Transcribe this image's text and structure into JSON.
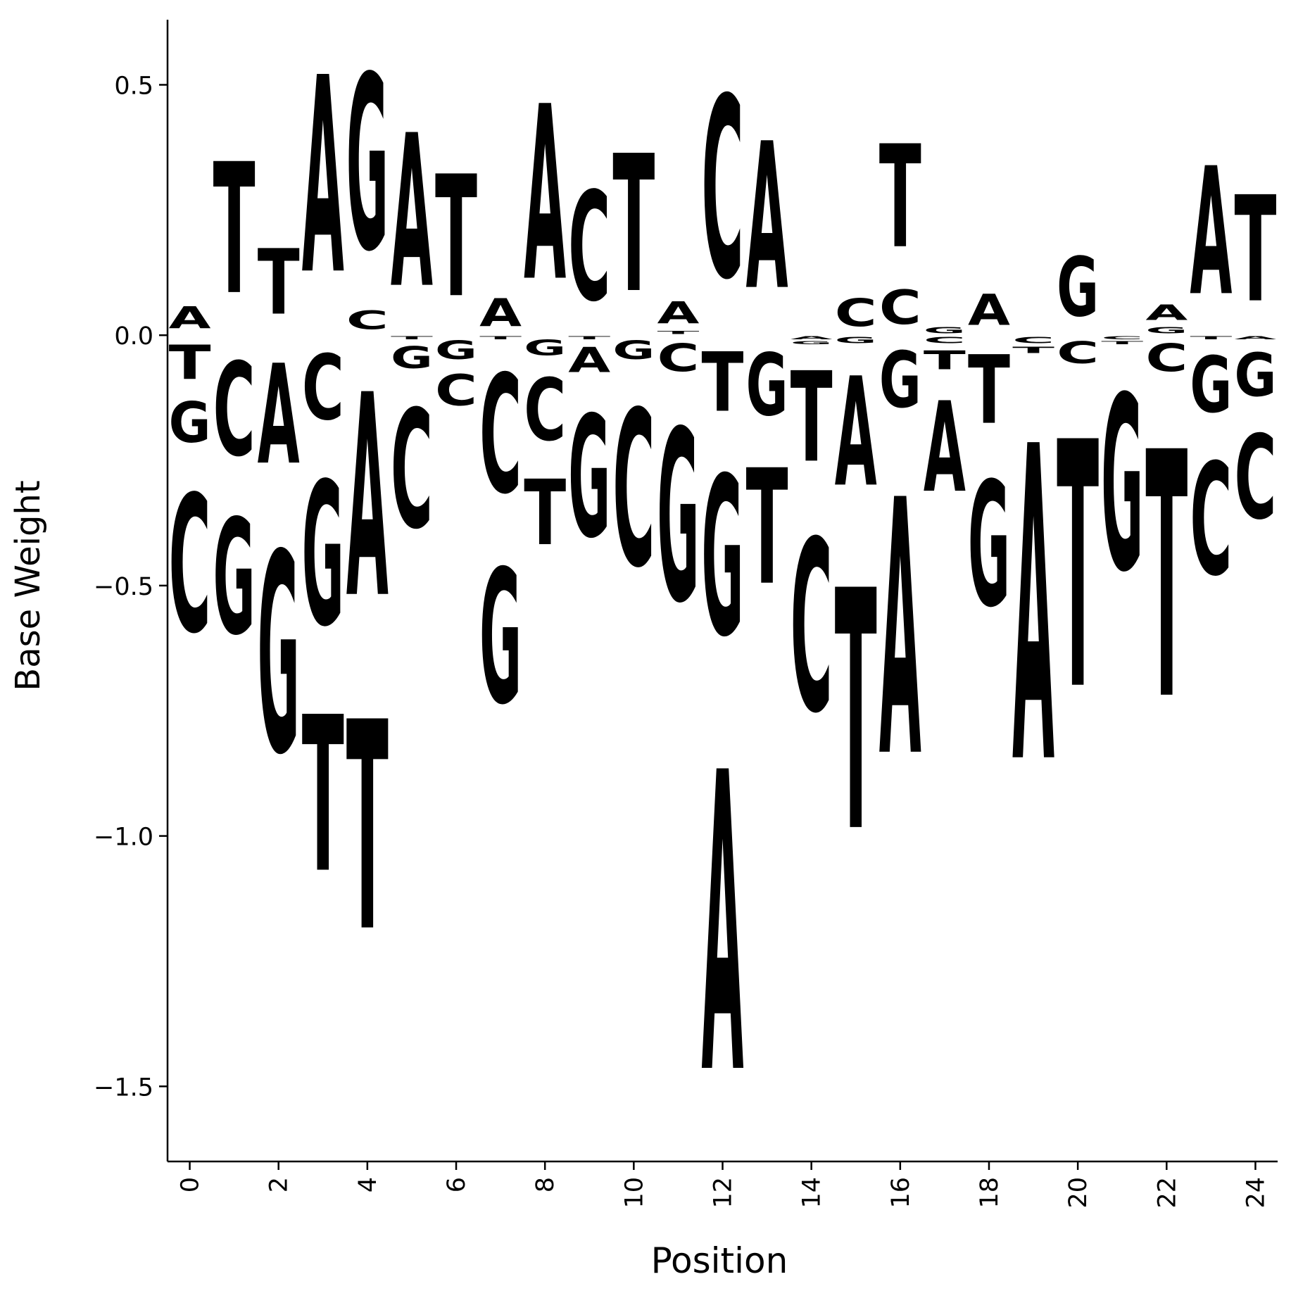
{
  "chart_data": {
    "type": "sequence-logo",
    "xlabel": "Position",
    "ylabel": "Base Weight",
    "ylim": [
      -1.65,
      0.63
    ],
    "xlim": [
      -0.5,
      24.5
    ],
    "yticks": [
      0.5,
      0.0,
      -0.5,
      -1.0,
      -1.5
    ],
    "ytick_labels": [
      "0.5",
      "0.0",
      "−0.5",
      "−1.0",
      "−1.5"
    ],
    "xticks": [
      0,
      2,
      4,
      6,
      8,
      10,
      12,
      14,
      16,
      18,
      20,
      22,
      24
    ],
    "xtick_labels": [
      "0",
      "2",
      "4",
      "6",
      "8",
      "10",
      "12",
      "14",
      "16",
      "18",
      "20",
      "22",
      "24"
    ],
    "colors": {
      "A": "#ff0000",
      "C": "#0000ff",
      "G": "#ffa500",
      "T": "#008000"
    },
    "grid": false,
    "positions": [
      {
        "A": 0.07,
        "C": -0.44,
        "G": -0.13,
        "T": -0.11
      },
      {
        "A": 0.0,
        "C": -0.3,
        "G": -0.37,
        "T": 0.42
      },
      {
        "A": -0.32,
        "C": 0.0,
        "G": -0.64,
        "T": 0.21
      },
      {
        "A": 0.63,
        "C": -0.21,
        "G": -0.46,
        "T": -0.5
      },
      {
        "A": -0.65,
        "C": 0.06,
        "G": 0.56,
        "T": -0.67
      },
      {
        "A": 0.49,
        "C": -0.38,
        "G": -0.07,
        "T": -0.01
      },
      {
        "A": 0.0,
        "C": -0.1,
        "G": -0.06,
        "T": 0.39
      },
      {
        "A": 0.09,
        "C": -0.38,
        "G": -0.43,
        "T": -0.01
      },
      {
        "A": 0.56,
        "C": -0.2,
        "G": -0.05,
        "T": -0.21
      },
      {
        "A": -0.08,
        "C": 0.35,
        "G": -0.39,
        "T": -0.01
      },
      {
        "A": 0.0,
        "C": -0.5,
        "G": -0.06,
        "T": 0.44
      },
      {
        "A": 0.07,
        "C": -0.09,
        "G": -0.55,
        "T": 0.01
      },
      {
        "A": -0.96,
        "C": 0.58,
        "G": -0.51,
        "T": -0.19
      },
      {
        "A": 0.47,
        "C": 0.0,
        "G": -0.2,
        "T": -0.37
      },
      {
        "A": -0.01,
        "C": -0.55,
        "G": -0.01,
        "T": -0.29
      },
      {
        "A": -0.35,
        "C": 0.09,
        "G": -0.02,
        "T": -0.77
      },
      {
        "A": -0.82,
        "C": 0.11,
        "G": -0.18,
        "T": 0.33
      },
      {
        "A": -0.29,
        "C": -0.02,
        "G": 0.02,
        "T": -0.06
      },
      {
        "A": 0.1,
        "C": 0.0,
        "G": -0.4,
        "T": -0.22
      },
      {
        "A": -1.01,
        "C": -0.02,
        "G": 0.0,
        "T": -0.02
      },
      {
        "A": 0.0,
        "C": -0.07,
        "G": 0.19,
        "T": -0.79
      },
      {
        "A": 0.0,
        "C": -0.01,
        "G": -0.56,
        "T": -0.01
      },
      {
        "A": 0.05,
        "C": -0.09,
        "G": 0.02,
        "T": -0.79
      },
      {
        "A": 0.41,
        "C": -0.36,
        "G": -0.18,
        "T": -0.01
      },
      {
        "A": -0.01,
        "C": -0.27,
        "G": -0.14,
        "T": 0.34
      }
    ]
  }
}
